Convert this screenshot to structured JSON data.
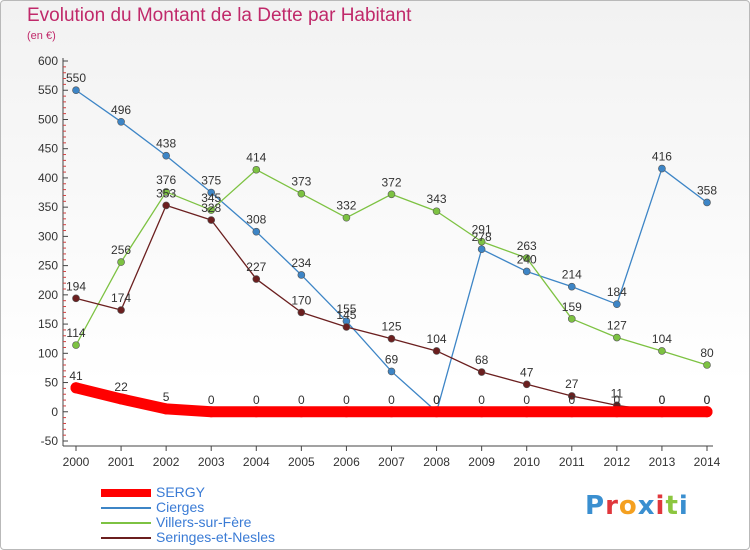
{
  "title": "Evolution du Montant de la Dette par Habitant",
  "subtitle": "(en €)",
  "logo": {
    "text": "Proxiti",
    "letters": [
      {
        "ch": "P",
        "color": "#3a8fd0"
      },
      {
        "ch": "r",
        "color": "#e0373c"
      },
      {
        "ch": "o",
        "color": "#f4a020"
      },
      {
        "ch": "x",
        "color": "#3a8fd0"
      },
      {
        "ch": "i",
        "color": "#e0373c"
      },
      {
        "ch": "t",
        "color": "#8cc63f"
      },
      {
        "ch": "i",
        "color": "#3a8fd0"
      }
    ]
  },
  "chart_data": {
    "type": "line",
    "title": "Evolution du Montant de la Dette par Habitant",
    "ylabel": "(en €)",
    "xlabel": "",
    "x": [
      "2000",
      "2001",
      "2002",
      "2003",
      "2004",
      "2005",
      "2006",
      "2007",
      "2008",
      "2009",
      "2010",
      "2011",
      "2012",
      "2013",
      "2014"
    ],
    "ylim": [
      -50,
      600
    ],
    "yticks": [
      -50,
      0,
      50,
      100,
      150,
      200,
      250,
      300,
      350,
      400,
      450,
      500,
      550,
      600
    ],
    "grid": false,
    "legend_position": "bottom-left",
    "series": [
      {
        "name": "SERGY",
        "color": "#ff0000",
        "values": [
          41,
          22,
          5,
          0,
          0,
          0,
          0,
          0,
          0,
          0,
          0,
          0,
          0,
          0,
          0
        ],
        "labels": [
          "41",
          "22",
          "5",
          "0",
          "0",
          "0",
          "0",
          "0",
          "0",
          "0",
          "0",
          "0",
          "0",
          "0",
          "0"
        ]
      },
      {
        "name": "Cierges",
        "color": "#3d85c6",
        "values": [
          550,
          496,
          438,
          375,
          308,
          234,
          155,
          69,
          0,
          278,
          240,
          214,
          184,
          416,
          358
        ],
        "labels": [
          "550",
          "496",
          "438",
          "375",
          "308",
          "234",
          "155",
          "69",
          "0",
          "278",
          "240",
          "214",
          "184",
          "416",
          "358"
        ]
      },
      {
        "name": "Villers-sur-Fère",
        "color": "#7dc242",
        "values": [
          114,
          256,
          376,
          345,
          414,
          373,
          332,
          372,
          343,
          291,
          263,
          159,
          127,
          104,
          80
        ],
        "labels": [
          "114",
          "256",
          "376",
          "345",
          "414",
          "373",
          "332",
          "372",
          "343",
          "291",
          "263",
          "159",
          "127",
          "104",
          "80"
        ]
      },
      {
        "name": "Seringes-et-Nesles",
        "color": "#6b1f1f",
        "values": [
          194,
          174,
          353,
          328,
          227,
          170,
          145,
          125,
          104,
          68,
          47,
          27,
          11,
          0,
          0
        ],
        "labels": [
          "194",
          "174",
          "353",
          "328",
          "227",
          "170",
          "145",
          "125",
          "104",
          "68",
          "47",
          "27",
          "11",
          "0",
          "0"
        ]
      }
    ]
  }
}
